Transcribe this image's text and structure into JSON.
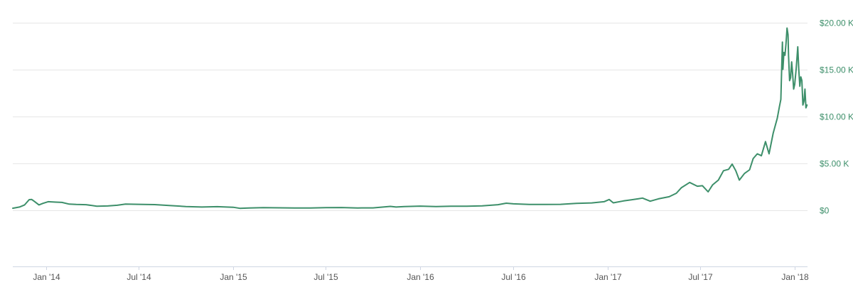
{
  "colors": {
    "series": "#3d8f6a",
    "grid": "#e6e6e6",
    "axis": "#cfd6e3"
  },
  "chart_data": {
    "type": "line",
    "title": "",
    "xlabel": "",
    "ylabel": "",
    "x_range": [
      "2013-10-28",
      "2018-01-26"
    ],
    "ylim": [
      -6000,
      20500
    ],
    "grid": "horizontal",
    "y_ticks": [
      {
        "value": 0,
        "label": "$0"
      },
      {
        "value": 5000,
        "label": "$5.00 K"
      },
      {
        "value": 10000,
        "label": "$10.00 K"
      },
      {
        "value": 15000,
        "label": "$15.00 K"
      },
      {
        "value": 20000,
        "label": "$20.00 K"
      }
    ],
    "x_ticks": [
      {
        "date": "2014-01-01",
        "label": "Jan '14"
      },
      {
        "date": "2014-07-01",
        "label": "Jul '14"
      },
      {
        "date": "2015-01-01",
        "label": "Jan '15"
      },
      {
        "date": "2015-07-01",
        "label": "Jul '15"
      },
      {
        "date": "2016-01-01",
        "label": "Jan '16"
      },
      {
        "date": "2016-07-01",
        "label": "Jul '16"
      },
      {
        "date": "2017-01-01",
        "label": "Jan '17"
      },
      {
        "date": "2017-07-01",
        "label": "Jul '17"
      },
      {
        "date": "2018-01-01",
        "label": "Jan '18"
      }
    ],
    "series": [
      {
        "values": [
          [
            "2013-10-28",
            200
          ],
          [
            "2013-11-10",
            330
          ],
          [
            "2013-11-20",
            560
          ],
          [
            "2013-11-29",
            1120
          ],
          [
            "2013-12-04",
            1130
          ],
          [
            "2013-12-10",
            900
          ],
          [
            "2013-12-18",
            560
          ],
          [
            "2013-12-26",
            720
          ],
          [
            "2014-01-05",
            900
          ],
          [
            "2014-01-20",
            850
          ],
          [
            "2014-02-01",
            820
          ],
          [
            "2014-02-15",
            640
          ],
          [
            "2014-03-01",
            600
          ],
          [
            "2014-03-20",
            580
          ],
          [
            "2014-04-10",
            420
          ],
          [
            "2014-05-01",
            440
          ],
          [
            "2014-05-20",
            520
          ],
          [
            "2014-06-05",
            650
          ],
          [
            "2014-07-01",
            620
          ],
          [
            "2014-08-01",
            590
          ],
          [
            "2014-09-01",
            480
          ],
          [
            "2014-10-01",
            380
          ],
          [
            "2014-11-01",
            330
          ],
          [
            "2014-12-01",
            370
          ],
          [
            "2015-01-01",
            310
          ],
          [
            "2015-01-14",
            190
          ],
          [
            "2015-02-01",
            230
          ],
          [
            "2015-03-01",
            260
          ],
          [
            "2015-04-01",
            245
          ],
          [
            "2015-05-01",
            235
          ],
          [
            "2015-06-01",
            225
          ],
          [
            "2015-07-01",
            265
          ],
          [
            "2015-08-01",
            280
          ],
          [
            "2015-09-01",
            230
          ],
          [
            "2015-10-01",
            240
          ],
          [
            "2015-11-04",
            400
          ],
          [
            "2015-11-15",
            330
          ],
          [
            "2015-12-01",
            380
          ],
          [
            "2016-01-01",
            430
          ],
          [
            "2016-02-01",
            380
          ],
          [
            "2016-03-01",
            420
          ],
          [
            "2016-04-01",
            420
          ],
          [
            "2016-05-01",
            450
          ],
          [
            "2016-06-01",
            580
          ],
          [
            "2016-06-17",
            740
          ],
          [
            "2016-07-01",
            670
          ],
          [
            "2016-08-01",
            600
          ],
          [
            "2016-09-01",
            610
          ],
          [
            "2016-10-01",
            620
          ],
          [
            "2016-11-01",
            720
          ],
          [
            "2016-12-01",
            770
          ],
          [
            "2016-12-25",
            900
          ],
          [
            "2017-01-04",
            1130
          ],
          [
            "2017-01-12",
            780
          ],
          [
            "2017-02-01",
            980
          ],
          [
            "2017-03-01",
            1200
          ],
          [
            "2017-03-10",
            1280
          ],
          [
            "2017-03-25",
            950
          ],
          [
            "2017-04-10",
            1200
          ],
          [
            "2017-05-01",
            1430
          ],
          [
            "2017-05-15",
            1800
          ],
          [
            "2017-05-25",
            2400
          ],
          [
            "2017-06-10",
            2950
          ],
          [
            "2017-06-25",
            2550
          ],
          [
            "2017-07-05",
            2600
          ],
          [
            "2017-07-16",
            1950
          ],
          [
            "2017-07-25",
            2700
          ],
          [
            "2017-08-05",
            3200
          ],
          [
            "2017-08-15",
            4200
          ],
          [
            "2017-08-25",
            4350
          ],
          [
            "2017-09-01",
            4900
          ],
          [
            "2017-09-08",
            4200
          ],
          [
            "2017-09-15",
            3200
          ],
          [
            "2017-09-25",
            3900
          ],
          [
            "2017-10-05",
            4300
          ],
          [
            "2017-10-12",
            5500
          ],
          [
            "2017-10-20",
            6000
          ],
          [
            "2017-10-28",
            5800
          ],
          [
            "2017-11-05",
            7300
          ],
          [
            "2017-11-12",
            6000
          ],
          [
            "2017-11-20",
            8200
          ],
          [
            "2017-11-28",
            9800
          ],
          [
            "2017-12-02",
            11000
          ],
          [
            "2017-12-05",
            11800
          ],
          [
            "2017-12-07",
            16000
          ],
          [
            "2017-12-08",
            17900
          ],
          [
            "2017-12-09",
            15000
          ],
          [
            "2017-12-11",
            16800
          ],
          [
            "2017-12-13",
            16500
          ],
          [
            "2017-12-15",
            17700
          ],
          [
            "2017-12-17",
            19400
          ],
          [
            "2017-12-19",
            18700
          ],
          [
            "2017-12-20",
            16500
          ],
          [
            "2017-12-22",
            13800
          ],
          [
            "2017-12-24",
            14100
          ],
          [
            "2017-12-26",
            15800
          ],
          [
            "2017-12-28",
            14500
          ],
          [
            "2017-12-30",
            12900
          ],
          [
            "2018-01-01",
            13400
          ],
          [
            "2018-01-04",
            15100
          ],
          [
            "2018-01-07",
            17400
          ],
          [
            "2018-01-09",
            15000
          ],
          [
            "2018-01-11",
            13200
          ],
          [
            "2018-01-13",
            14200
          ],
          [
            "2018-01-15",
            13800
          ],
          [
            "2018-01-17",
            11200
          ],
          [
            "2018-01-19",
            11600
          ],
          [
            "2018-01-21",
            12900
          ],
          [
            "2018-01-23",
            10900
          ],
          [
            "2018-01-25",
            11200
          ]
        ]
      }
    ]
  }
}
